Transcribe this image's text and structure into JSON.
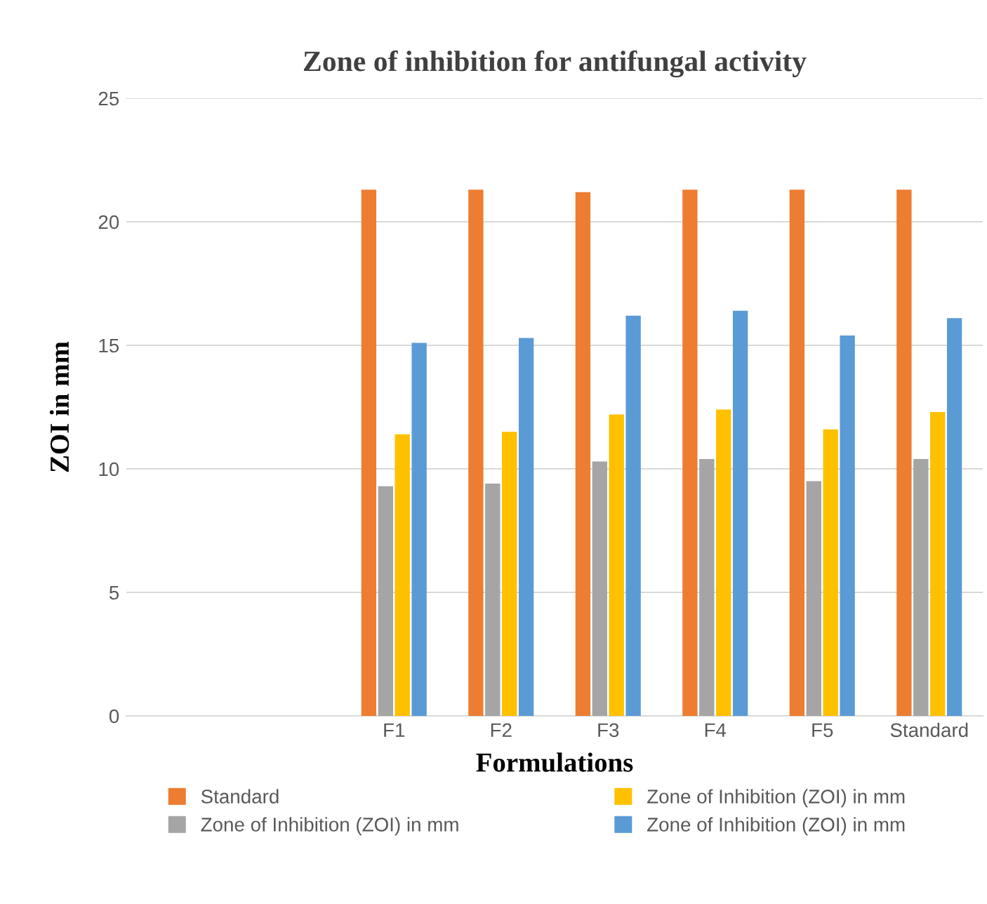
{
  "chart_data": {
    "type": "bar",
    "title": "Zone of inhibition for antifungal activity",
    "xlabel": "Formulations",
    "ylabel": "ZOI in mm",
    "categories": [
      null,
      null,
      "F1",
      "F2",
      "F3",
      "F4",
      "F5",
      "Standard"
    ],
    "series": [
      {
        "name": "Standard",
        "color": "#ed7d31",
        "values": [
          null,
          null,
          21.3,
          21.3,
          21.2,
          21.3,
          21.3,
          21.3
        ]
      },
      {
        "name": "Zone of Inhibition (ZOI) in mm",
        "color": "#a5a5a5",
        "values": [
          null,
          null,
          9.3,
          9.4,
          10.3,
          10.4,
          9.5,
          10.4
        ]
      },
      {
        "name": "Zone of Inhibition (ZOI) in mm",
        "color": "#ffc000",
        "values": [
          null,
          null,
          11.4,
          11.5,
          12.2,
          12.4,
          11.6,
          12.3
        ]
      },
      {
        "name": "Zone of Inhibition (ZOI) in mm",
        "color": "#5b9bd5",
        "values": [
          null,
          null,
          15.1,
          15.3,
          16.2,
          16.4,
          15.4,
          16.1
        ]
      }
    ],
    "ylim": [
      0,
      25
    ],
    "yticks": [
      0,
      5,
      10,
      15,
      20,
      25
    ],
    "grid": "y",
    "legend": "bottom"
  }
}
